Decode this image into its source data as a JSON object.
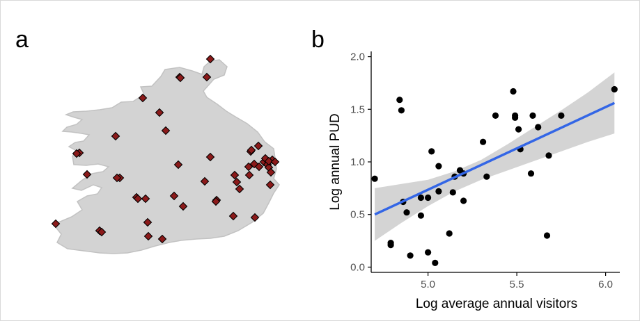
{
  "panels": {
    "a_label": "a",
    "b_label": "b"
  },
  "colors": {
    "land_fill": "#d3d3d3",
    "land_stroke": "#c2c2c2",
    "site_marker": "#8b1a1a",
    "point": "#000000",
    "trend_line": "#3366e6",
    "confidence_band": "#cccccc"
  },
  "map": {
    "marker_shape": "diamond",
    "site_count": 50
  },
  "chart_data": {
    "type": "scatter",
    "xlabel": "Log average annual visitors",
    "ylabel": "Log annual PUD",
    "xlim": [
      4.68,
      6.08
    ],
    "ylim": [
      -0.05,
      2.05
    ],
    "xticks": [
      5.0,
      5.5,
      6.0
    ],
    "xtick_labels": [
      "5.0",
      "5.5",
      "6.0"
    ],
    "yticks": [
      0.0,
      0.5,
      1.0,
      1.5,
      2.0
    ],
    "ytick_labels": [
      "0.0",
      "0.5",
      "1.0",
      "1.5",
      "2.0"
    ],
    "grid": false,
    "points": [
      [
        4.7,
        0.84
      ],
      [
        4.79,
        0.23
      ],
      [
        4.79,
        0.21
      ],
      [
        4.84,
        1.59
      ],
      [
        4.85,
        1.49
      ],
      [
        4.86,
        0.62
      ],
      [
        4.88,
        0.52
      ],
      [
        4.9,
        0.11
      ],
      [
        4.96,
        0.66
      ],
      [
        4.96,
        0.49
      ],
      [
        5.0,
        0.14
      ],
      [
        5.0,
        0.66
      ],
      [
        5.02,
        1.1
      ],
      [
        5.04,
        0.04
      ],
      [
        5.06,
        0.96
      ],
      [
        5.06,
        0.72
      ],
      [
        5.12,
        0.32
      ],
      [
        5.14,
        0.71
      ],
      [
        5.15,
        0.86
      ],
      [
        5.18,
        0.92
      ],
      [
        5.2,
        0.89
      ],
      [
        5.2,
        0.63
      ],
      [
        5.31,
        1.19
      ],
      [
        5.33,
        0.86
      ],
      [
        5.38,
        1.44
      ],
      [
        5.48,
        1.67
      ],
      [
        5.49,
        1.44
      ],
      [
        5.49,
        1.42
      ],
      [
        5.51,
        1.31
      ],
      [
        5.52,
        1.12
      ],
      [
        5.58,
        0.89
      ],
      [
        5.59,
        1.44
      ],
      [
        5.62,
        1.33
      ],
      [
        5.67,
        0.3
      ],
      [
        5.68,
        1.06
      ],
      [
        5.75,
        1.44
      ],
      [
        6.05,
        1.69
      ]
    ],
    "trend_line": {
      "x": [
        4.7,
        6.05
      ],
      "y": [
        0.5,
        1.56
      ]
    },
    "confidence_band": {
      "x": [
        4.7,
        4.85,
        5.0,
        5.15,
        5.3,
        5.45,
        5.6,
        5.75,
        5.9,
        6.05
      ],
      "lower": [
        0.25,
        0.42,
        0.58,
        0.72,
        0.83,
        0.92,
        1.01,
        1.1,
        1.19,
        1.27
      ],
      "upper": [
        0.75,
        0.79,
        0.83,
        0.91,
        1.02,
        1.17,
        1.33,
        1.49,
        1.66,
        1.85
      ]
    }
  }
}
